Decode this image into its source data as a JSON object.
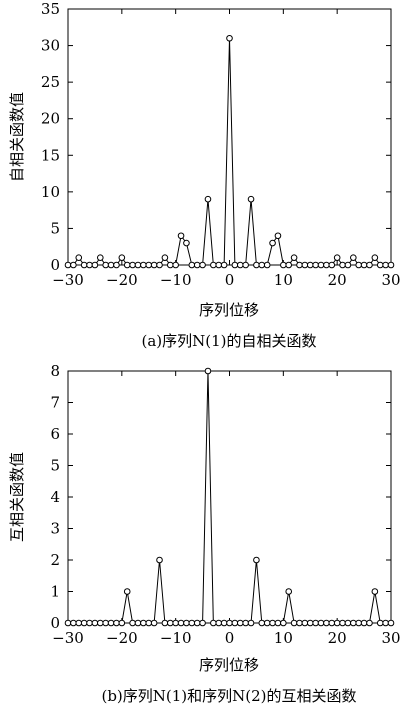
{
  "chart_data": [
    {
      "type": "line",
      "title": "(a)序列N(1)的自相关函数",
      "xlabel": "序列位移",
      "ylabel": "自相关函数值",
      "xlim": [
        -30,
        30
      ],
      "ylim": [
        0,
        35
      ],
      "xticks": [
        -30,
        -20,
        -10,
        0,
        10,
        20,
        30
      ],
      "yticks": [
        0,
        5,
        10,
        15,
        20,
        25,
        30,
        35
      ],
      "marker": "circle",
      "x": [
        -30,
        -29,
        -28,
        -27,
        -26,
        -25,
        -24,
        -23,
        -22,
        -21,
        -20,
        -19,
        -18,
        -17,
        -16,
        -15,
        -14,
        -13,
        -12,
        -11,
        -10,
        -9,
        -8,
        -7,
        -6,
        -5,
        -4,
        -3,
        -2,
        -1,
        0,
        1,
        2,
        3,
        4,
        5,
        6,
        7,
        8,
        9,
        10,
        11,
        12,
        13,
        14,
        15,
        16,
        17,
        18,
        19,
        20,
        21,
        22,
        23,
        24,
        25,
        26,
        27,
        28,
        29,
        30
      ],
      "y": [
        0,
        0,
        1,
        0,
        0,
        0,
        1,
        0,
        0,
        0,
        1,
        0,
        0,
        0,
        0,
        0,
        0,
        0,
        1,
        0,
        0,
        4,
        3,
        0,
        0,
        0,
        9,
        0,
        0,
        0,
        31,
        0,
        0,
        0,
        9,
        0,
        0,
        0,
        3,
        4,
        0,
        0,
        1,
        0,
        0,
        0,
        0,
        0,
        0,
        0,
        1,
        0,
        0,
        1,
        0,
        0,
        0,
        1,
        0,
        0,
        0
      ]
    },
    {
      "type": "line",
      "title": "(b)序列N(1)和序列N(2)的互相关函数",
      "xlabel": "序列位移",
      "ylabel": "互相关函数值",
      "xlim": [
        -30,
        30
      ],
      "ylim": [
        0,
        8
      ],
      "xticks": [
        -30,
        -20,
        -10,
        0,
        10,
        20,
        30
      ],
      "yticks": [
        0,
        1,
        2,
        3,
        4,
        5,
        6,
        7,
        8
      ],
      "marker": "circle",
      "x": [
        -30,
        -29,
        -28,
        -27,
        -26,
        -25,
        -24,
        -23,
        -22,
        -21,
        -20,
        -19,
        -18,
        -17,
        -16,
        -15,
        -14,
        -13,
        -12,
        -11,
        -10,
        -9,
        -8,
        -7,
        -6,
        -5,
        -4,
        -3,
        -2,
        -1,
        0,
        1,
        2,
        3,
        4,
        5,
        6,
        7,
        8,
        9,
        10,
        11,
        12,
        13,
        14,
        15,
        16,
        17,
        18,
        19,
        20,
        21,
        22,
        23,
        24,
        25,
        26,
        27,
        28,
        29,
        30
      ],
      "y": [
        0,
        0,
        0,
        0,
        0,
        0,
        0,
        0,
        0,
        0,
        0,
        1,
        0,
        0,
        0,
        0,
        0,
        2,
        0,
        0,
        0,
        0,
        0,
        0,
        0,
        0,
        8,
        0,
        0,
        0,
        0,
        0,
        0,
        0,
        0,
        2,
        0,
        0,
        0,
        0,
        0,
        1,
        0,
        0,
        0,
        0,
        0,
        0,
        0,
        0,
        0,
        0,
        0,
        0,
        0,
        0,
        0,
        1,
        0,
        0,
        0
      ]
    }
  ]
}
